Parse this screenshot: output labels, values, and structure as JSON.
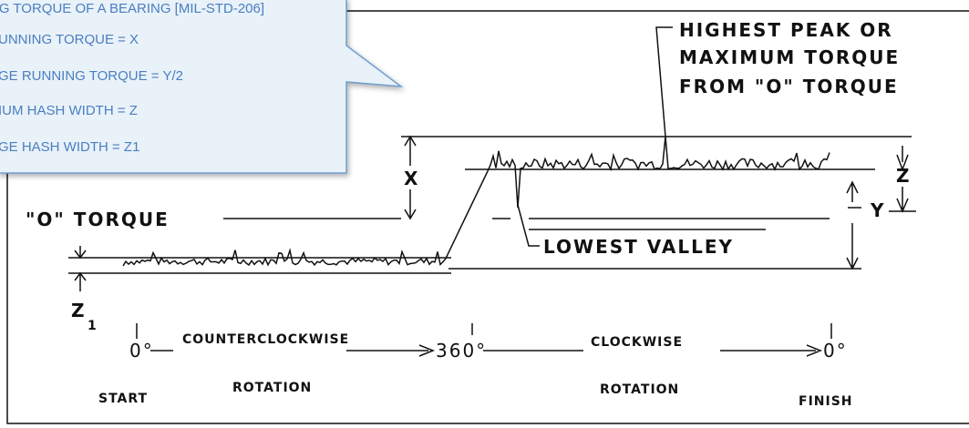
{
  "callout": {
    "lines": [
      "NG TORQUE OF A BEARING [MIL-STD-206]",
      "UNNING TORQUE = X",
      "GE RUNNING TORQUE = Y/2",
      "IUM HASH WIDTH = Z",
      "GE HASH WIDTH = Z1"
    ]
  },
  "diagram": {
    "peak_label": [
      "HIGHEST PEAK OR",
      "MAXIMUM TORQUE",
      "FROM \"O\" TORQUE"
    ],
    "x_label": "X",
    "z_label": "Z",
    "y_label": "Y",
    "o_torque_label": "\"O\" TORQUE",
    "valley_label": "LOWEST VALLEY",
    "z1_label": "Z",
    "z1_subscript": "1",
    "start_angle": "0°",
    "mid_angle": "360°",
    "end_angle": "0°",
    "ccw_label": [
      "COUNTERCLOCKWISE",
      "ROTATION"
    ],
    "cw_label": [
      "CLOCKWISE",
      "ROTATION"
    ],
    "start_label": "START",
    "finish_label": "FINISH"
  }
}
